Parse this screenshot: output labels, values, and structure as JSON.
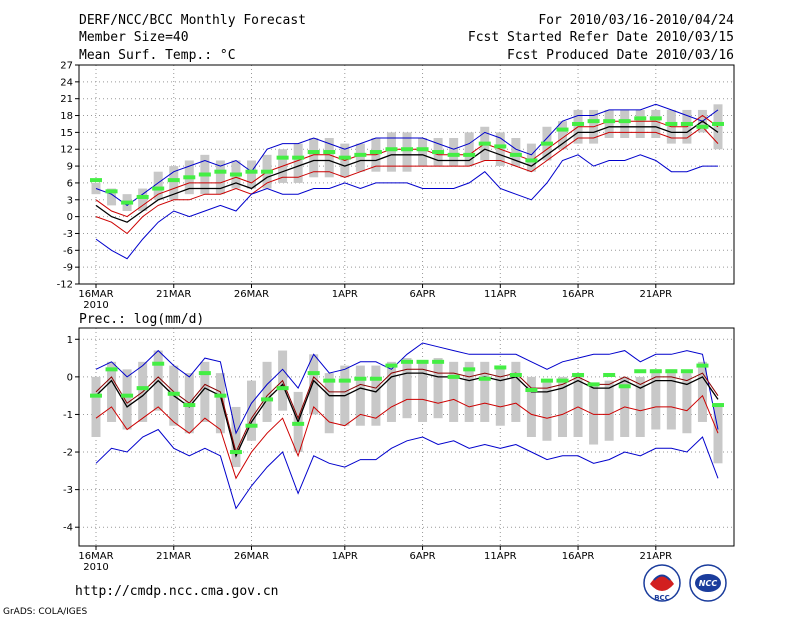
{
  "header": {
    "title": "DERF/NCC/BCC Monthly Forecast",
    "member_size": "Member Size=40",
    "variable": "Mean Surf. Temp.: °C",
    "period": "For 2010/03/16-2010/04/24",
    "fcst_started": "Fcst Started Refer Date 2010/03/15",
    "fcst_produced": "Fcst Produced Date 2010/03/16"
  },
  "footer": {
    "url": "http://cmdp.ncc.cma.gov.cn",
    "credit": "GrADS: COLA/IGES",
    "logo_bcc": "BCC",
    "logo_ncc": "NCC"
  },
  "colors": {
    "max_line": "#0000cc",
    "min_line": "#0000cc",
    "upper_line": "#cc0000",
    "lower_line": "#cc0000",
    "mean_line": "#000000",
    "box": "#c8c8c8",
    "green": "#44ee44",
    "grid": "#999999"
  },
  "chart_data": [
    {
      "type": "line",
      "title": "Mean Surf. Temp.: °C",
      "ylabel": "°C",
      "ylim": [
        -12,
        27
      ],
      "yticks": [
        27,
        24,
        21,
        18,
        15,
        12,
        9,
        6,
        3,
        0,
        -3,
        -6,
        -9,
        -12
      ],
      "xlim": [
        0,
        40
      ],
      "xticks": [
        {
          "day": 1,
          "label": "16MAR",
          "sub": "2010"
        },
        {
          "day": 6,
          "label": "21MAR"
        },
        {
          "day": 11,
          "label": "26MAR"
        },
        {
          "day": 17,
          "label": "1APR"
        },
        {
          "day": 22,
          "label": "6APR"
        },
        {
          "day": 27,
          "label": "11APR"
        },
        {
          "day": 32,
          "label": "16APR"
        },
        {
          "day": 37,
          "label": "21APR"
        }
      ],
      "legend": "none",
      "grid": true,
      "series": [
        {
          "name": "max",
          "color": "#0000cc",
          "values": [
            5,
            4,
            2,
            4,
            6,
            8,
            9,
            10,
            9,
            10,
            8,
            12,
            13,
            13,
            14,
            13,
            12,
            13,
            14,
            14,
            14,
            14,
            13,
            12,
            13,
            15,
            14,
            12,
            11,
            14,
            17,
            18,
            18,
            19,
            19,
            19,
            20,
            19,
            18,
            17,
            19
          ]
        },
        {
          "name": "upper",
          "color": "#cc0000",
          "values": [
            3,
            1,
            0,
            2,
            4,
            5,
            6,
            6,
            6,
            7,
            6,
            8,
            9,
            10,
            11,
            11,
            10,
            11,
            11,
            12,
            12,
            12,
            11,
            11,
            11,
            13,
            12,
            11,
            10,
            12,
            14,
            16,
            16,
            17,
            17,
            17,
            17,
            16,
            16,
            18,
            16
          ]
        },
        {
          "name": "mean",
          "color": "#000000",
          "values": [
            2,
            0,
            -1,
            1,
            3,
            4,
            5,
            5,
            5,
            6,
            5,
            7,
            8,
            9,
            10,
            10,
            9,
            10,
            10,
            11,
            11,
            11,
            10,
            10,
            10,
            12,
            11,
            10,
            9,
            11,
            13,
            15,
            15,
            16,
            16,
            16,
            16,
            15,
            15,
            17,
            15
          ]
        },
        {
          "name": "lower",
          "color": "#cc0000",
          "values": [
            0,
            -1,
            -3,
            0,
            2,
            3,
            3,
            4,
            4,
            5,
            4,
            6,
            7,
            7,
            8,
            8,
            7,
            8,
            9,
            9,
            9,
            9,
            9,
            9,
            9,
            10,
            10,
            9,
            8,
            10,
            12,
            14,
            14,
            15,
            15,
            15,
            15,
            14,
            14,
            16,
            13
          ]
        },
        {
          "name": "min",
          "color": "#0000cc",
          "values": [
            -4,
            -6,
            -7.5,
            -4,
            -1,
            1,
            0,
            1,
            2,
            1,
            4,
            5,
            4,
            4,
            5,
            5,
            6,
            5,
            6,
            6,
            6,
            5,
            5,
            5,
            6,
            8,
            5,
            4,
            3,
            6,
            10,
            11,
            9,
            10,
            10,
            11,
            10,
            8,
            8,
            9,
            9
          ]
        }
      ],
      "boxes": {
        "low": [
          4,
          2,
          1,
          1,
          3,
          3,
          4,
          4,
          4,
          5,
          5,
          5,
          6,
          6,
          7,
          7,
          7,
          8,
          8,
          8,
          8,
          9,
          9,
          9,
          9,
          10,
          9,
          9,
          8,
          10,
          12,
          13,
          13,
          14,
          14,
          14,
          14,
          13,
          13,
          15,
          12
        ],
        "high": [
          6,
          5,
          4,
          5,
          8,
          9,
          10,
          11,
          10,
          10,
          10,
          11,
          12,
          13,
          14,
          14,
          13,
          13,
          14,
          15,
          15,
          14,
          14,
          14,
          15,
          16,
          15,
          14,
          13,
          16,
          17,
          19,
          19,
          19,
          19,
          19,
          19,
          19,
          19,
          19,
          20
        ]
      },
      "green_marks": [
        6.5,
        4.5,
        2.5,
        3.5,
        5,
        6.5,
        7,
        7.5,
        8,
        7.5,
        8,
        8,
        10.5,
        10.5,
        11.5,
        11.5,
        10.5,
        11,
        11.5,
        12,
        12,
        12,
        11.5,
        11,
        11,
        13,
        12.5,
        11,
        10,
        13,
        15.5,
        16.5,
        17,
        17,
        17,
        17.5,
        17.5,
        16.5,
        16.5,
        16,
        16.5
      ]
    },
    {
      "type": "line",
      "title": "Prec.: log(mm/d)",
      "ylabel": "log(mm/d)",
      "ylim": [
        -4.5,
        1.3
      ],
      "yticks": [
        1,
        0,
        -1,
        -2,
        -3,
        -4
      ],
      "xlim": [
        0,
        40
      ],
      "xticks": [
        {
          "day": 1,
          "label": "16MAR",
          "sub": "2010"
        },
        {
          "day": 6,
          "label": "21MAR"
        },
        {
          "day": 11,
          "label": "26MAR"
        },
        {
          "day": 17,
          "label": "1APR"
        },
        {
          "day": 22,
          "label": "6APR"
        },
        {
          "day": 27,
          "label": "11APR"
        },
        {
          "day": 32,
          "label": "16APR"
        },
        {
          "day": 37,
          "label": "21APR"
        }
      ],
      "legend": "none",
      "grid": true,
      "series": [
        {
          "name": "max",
          "color": "#0000cc",
          "values": [
            0.2,
            0.4,
            0,
            0.3,
            0.7,
            0.3,
            0,
            0.5,
            0.4,
            -1.5,
            -0.7,
            -0.2,
            0.2,
            -0.3,
            0.6,
            0.1,
            0.2,
            0.4,
            0.4,
            0.2,
            0.6,
            0.9,
            0.8,
            0.7,
            0.6,
            0.6,
            0.6,
            0.6,
            0.4,
            0.2,
            0.4,
            0.5,
            0.6,
            0.6,
            0.7,
            0.4,
            0.6,
            0.6,
            0.7,
            0.6,
            -1.4
          ]
        },
        {
          "name": "mean",
          "color": "#000000",
          "values": [
            -0.5,
            -0.1,
            -0.8,
            -0.5,
            -0.1,
            -0.5,
            -0.8,
            -0.3,
            -0.5,
            -2.1,
            -1.2,
            -0.6,
            -0.2,
            -1.2,
            -0.1,
            -0.5,
            -0.5,
            -0.3,
            -0.4,
            0,
            0.1,
            0.1,
            0,
            0,
            -0.1,
            0,
            -0.1,
            0,
            -0.4,
            -0.4,
            -0.3,
            -0.1,
            -0.3,
            -0.3,
            -0.1,
            -0.3,
            -0.1,
            -0.1,
            -0.2,
            0,
            -0.6
          ]
        },
        {
          "name": "upper",
          "color": "#8b0000",
          "values": [
            -0.4,
            0,
            -0.7,
            -0.4,
            0,
            -0.4,
            -0.7,
            -0.2,
            -0.4,
            -2,
            -1.1,
            -0.5,
            -0.1,
            -1.1,
            0,
            -0.4,
            -0.4,
            -0.2,
            -0.3,
            0.1,
            0.2,
            0.2,
            0.1,
            0.1,
            0,
            0.1,
            0,
            0.1,
            -0.3,
            -0.3,
            -0.2,
            0,
            -0.2,
            -0.2,
            0,
            -0.2,
            0,
            0,
            -0.1,
            0.1,
            -0.5
          ]
        },
        {
          "name": "lower",
          "color": "#cc0000",
          "values": [
            -1.1,
            -0.8,
            -1.4,
            -1.1,
            -0.8,
            -1.2,
            -1.5,
            -1.1,
            -1.4,
            -2.7,
            -2,
            -1.5,
            -1.1,
            -2.1,
            -0.8,
            -1.2,
            -1.3,
            -1,
            -1.1,
            -0.8,
            -0.6,
            -0.6,
            -0.7,
            -0.6,
            -0.8,
            -0.7,
            -0.8,
            -0.7,
            -1,
            -1.1,
            -1,
            -0.8,
            -1,
            -1,
            -0.8,
            -0.9,
            -0.8,
            -0.8,
            -0.9,
            -0.5,
            -1.5
          ]
        },
        {
          "name": "min",
          "color": "#0000cc",
          "values": [
            -2.3,
            -1.9,
            -2,
            -1.6,
            -1.4,
            -1.9,
            -2.1,
            -1.9,
            -2.1,
            -3.5,
            -2.9,
            -2.4,
            -2,
            -3.1,
            -2.1,
            -2.3,
            -2.4,
            -2.2,
            -2.2,
            -1.9,
            -1.7,
            -1.6,
            -1.8,
            -1.7,
            -1.9,
            -1.8,
            -1.9,
            -1.8,
            -2,
            -2.2,
            -2.1,
            -2.1,
            -2.3,
            -2.2,
            -2,
            -2.1,
            -1.9,
            -1.9,
            -2,
            -1.6,
            -2.7
          ]
        }
      ],
      "boxes": {
        "low": [
          -1.6,
          -1.2,
          -1.4,
          -1.2,
          -0.9,
          -1.3,
          -1.5,
          -1.2,
          -1.5,
          -2.4,
          -1.7,
          -1.2,
          -0.9,
          -2,
          -1,
          -1.5,
          -1.3,
          -1.3,
          -1.3,
          -1.2,
          -1.1,
          -1.2,
          -1.1,
          -1.2,
          -1.2,
          -1.2,
          -1.3,
          -1.2,
          -1.6,
          -1.7,
          -1.6,
          -1.6,
          -1.8,
          -1.7,
          -1.6,
          -1.6,
          -1.4,
          -1.4,
          -1.5,
          -1.2,
          -2.3
        ]
      },
      "green_marks": [
        -0.5,
        0.2,
        -0.5,
        -0.3,
        0.35,
        -0.45,
        -0.75,
        0.1,
        -0.5,
        -2,
        -1.3,
        -0.6,
        -0.3,
        -1.25,
        0.1,
        -0.1,
        -0.1,
        -0.05,
        -0.05,
        0.3,
        0.4,
        0.4,
        0.4,
        0,
        0.2,
        -0.05,
        0.25,
        0.05,
        -0.35,
        -0.1,
        -0.1,
        0.05,
        -0.2,
        0.05,
        -0.25,
        0.15,
        0.15,
        0.15,
        0.15,
        0.3,
        -0.75
      ]
    }
  ]
}
